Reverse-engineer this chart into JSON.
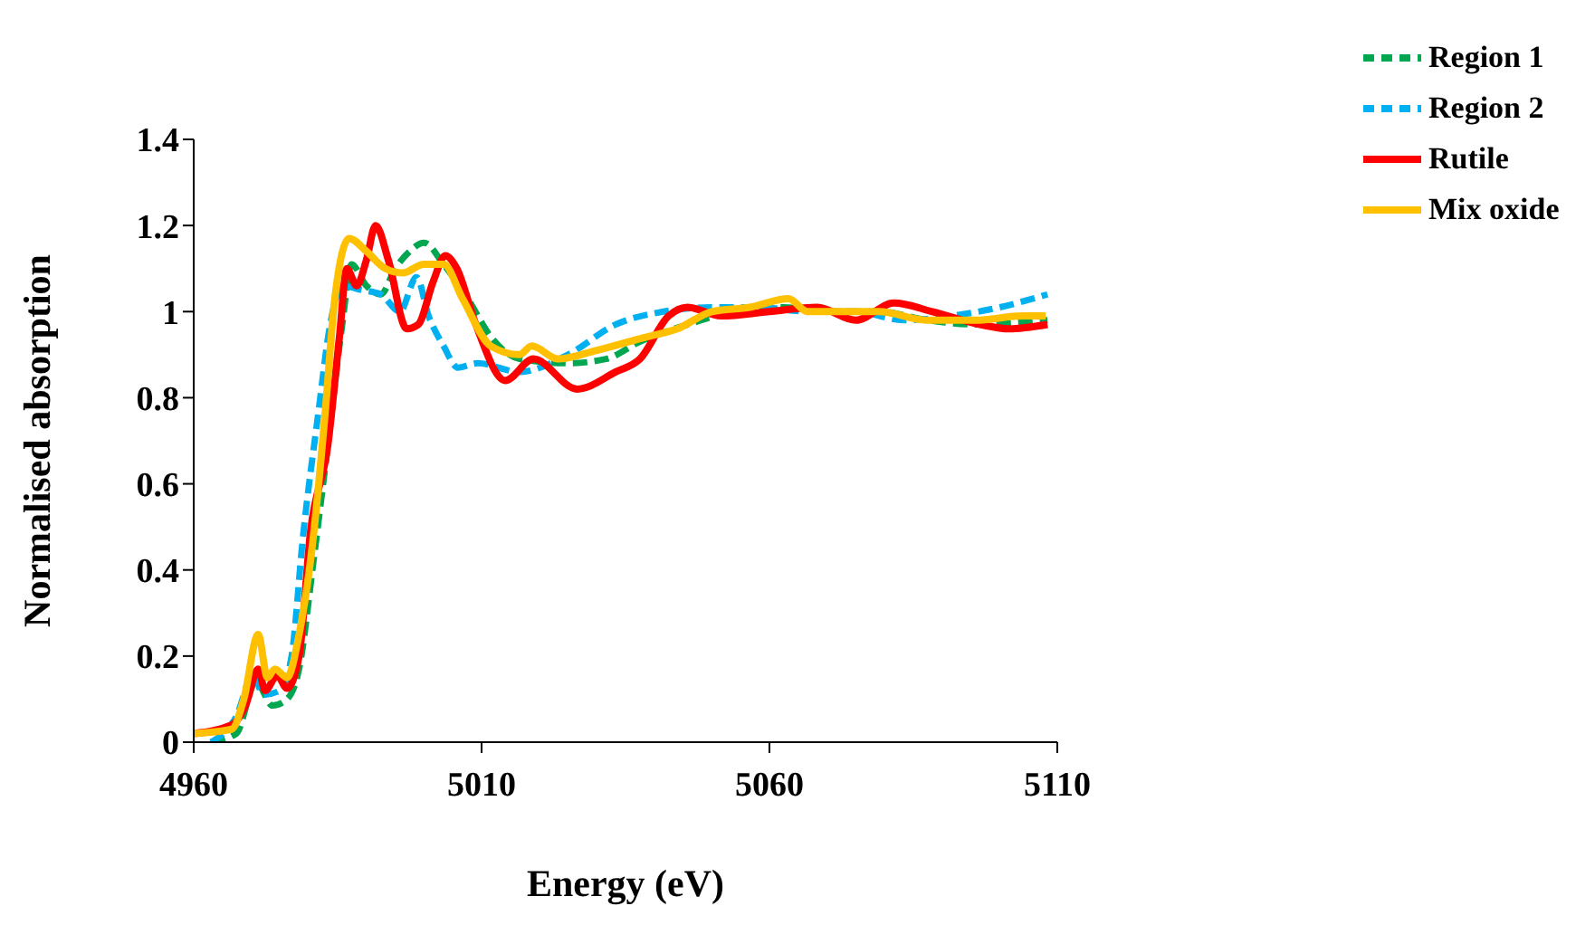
{
  "chart_data": {
    "type": "line",
    "xlabel": "Energy (eV)",
    "ylabel": "Normalised absorption",
    "xlim": [
      4960,
      5110
    ],
    "xticks": [
      4960,
      5010,
      5060,
      5110
    ],
    "ylim": [
      0,
      1.4
    ],
    "yticks": [
      0,
      0.2,
      0.4,
      0.6,
      0.8,
      1,
      1.2,
      1.4
    ],
    "grid": false,
    "legend": "top right",
    "marker": "none",
    "series": [
      {
        "name": "Region 1",
        "color": "#00a650",
        "line_style": "dashed",
        "x": [
          4963,
          4967.4,
          4970.8,
          4973.7,
          4976.2,
          4978.3,
          4980.8,
          4983.3,
          4985.8,
          4987.4,
          4990,
          4992.5,
          4995,
          4997.5,
          5000,
          5003.4,
          5007.6,
          5011.7,
          5016.6,
          5025,
          5031.6,
          5037.5,
          5045.8,
          5054,
          5062.4,
          5070.8,
          5079,
          5087.5,
          5095.8,
          5108.3
        ],
        "values": [
          0,
          0.02,
          0.14,
          0.085,
          0.1,
          0.17,
          0.42,
          0.69,
          0.97,
          1.11,
          1.06,
          1.04,
          1.1,
          1.14,
          1.16,
          1.11,
          1.03,
          0.94,
          0.89,
          0.88,
          0.89,
          0.93,
          0.97,
          1,
          1.01,
          1,
          1,
          0.98,
          0.97,
          0.98
        ]
      },
      {
        "name": "Region 2",
        "color": "#00b0f0",
        "line_style": "dashed",
        "x": [
          4963,
          4967.4,
          4970.4,
          4972,
          4975,
          4977,
          4979,
          4981.6,
          4983.7,
          4985.8,
          4989.2,
          4992.5,
          4995.8,
          4998.7,
          5000.8,
          5003.4,
          5005.9,
          5009.3,
          5016.6,
          5025,
          5033.3,
          5041.6,
          5050,
          5058.3,
          5066.6,
          5075,
          5083.3,
          5091.6,
          5100,
          5108.3
        ],
        "values": [
          0,
          0.06,
          0.16,
          0.11,
          0.12,
          0.2,
          0.48,
          0.76,
          0.97,
          1.06,
          1.05,
          1.04,
          1,
          1.08,
          0.99,
          0.92,
          0.87,
          0.88,
          0.86,
          0.9,
          0.97,
          1,
          1.01,
          1.01,
          1,
          1,
          0.98,
          0.99,
          1.01,
          1.04
        ]
      },
      {
        "name": "Rutile",
        "color": "#ff0000",
        "line_style": "solid",
        "x": [
          4960,
          4966.6,
          4969,
          4971.2,
          4972.4,
          4974.5,
          4976.2,
          4978.3,
          4980.3,
          4983.3,
          4985.3,
          4986.6,
          4988.3,
          4990,
          4991.6,
          4993.8,
          4997,
          4999,
          5001.6,
          5003.7,
          5005.7,
          5009,
          5014.1,
          5019,
          5026.6,
          5033.3,
          5037.5,
          5042.5,
          5045.8,
          5051.6,
          5060,
          5068.3,
          5075,
          5081.6,
          5088.3,
          5096.6,
          5101.6,
          5108.3
        ],
        "values": [
          0.02,
          0.04,
          0.085,
          0.17,
          0.12,
          0.155,
          0.125,
          0.2,
          0.49,
          0.69,
          0.94,
          1.1,
          1.06,
          1.12,
          1.2,
          1.12,
          0.96,
          0.97,
          1.07,
          1.13,
          1.1,
          0.97,
          0.84,
          0.89,
          0.82,
          0.86,
          0.89,
          0.99,
          1.01,
          0.99,
          1,
          1.01,
          0.98,
          1.02,
          1,
          0.97,
          0.96,
          0.97
        ]
      },
      {
        "name": "Mix oxide",
        "color": "#ffc000",
        "line_style": "solid",
        "x": [
          4960,
          4966.6,
          4968.7,
          4971.2,
          4972.8,
          4974.1,
          4976.2,
          4978.3,
          4980.8,
          4982.8,
          4984.5,
          4987,
          4990,
          4993.3,
          4996.3,
          5000,
          5003.4,
          5006.7,
          5011.6,
          5016.6,
          5018.7,
          5023.3,
          5030,
          5038.3,
          5044,
          5050,
          5056.6,
          5063.3,
          5066.6,
          5073.3,
          5079,
          5087.5,
          5095.8,
          5104,
          5108
        ],
        "values": [
          0.02,
          0.03,
          0.1,
          0.25,
          0.15,
          0.17,
          0.15,
          0.25,
          0.48,
          0.76,
          1.03,
          1.17,
          1.14,
          1.1,
          1.09,
          1.11,
          1.11,
          1.03,
          0.92,
          0.9,
          0.92,
          0.89,
          0.91,
          0.94,
          0.96,
          1,
          1.01,
          1.03,
          1,
          1,
          1,
          0.98,
          0.98,
          0.99,
          0.99
        ]
      }
    ]
  }
}
